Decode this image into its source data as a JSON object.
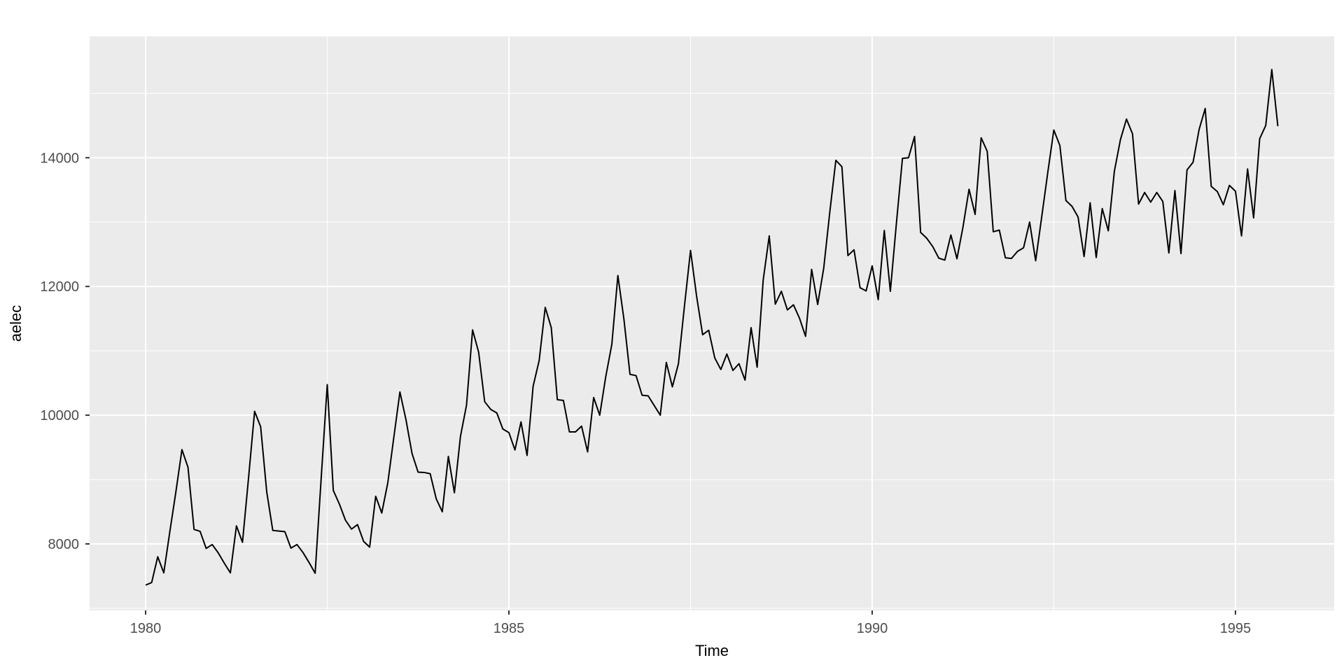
{
  "figure": {
    "xlabel": "Time",
    "ylabel": "aelec"
  },
  "style": {
    "outer_bg": "#ffffff",
    "panel_bg": "#ebebeb",
    "grid_color": "#ffffff",
    "line_color": "#000000",
    "axis_text_color": "#4d4d4d",
    "axis_title_color": "#000000",
    "tick_mark_color": "#333333"
  },
  "chart_data": {
    "type": "line",
    "title": "",
    "xlabel": "Time",
    "ylabel": "aelec",
    "legend": false,
    "grid": true,
    "series": [
      {
        "name": "aelec",
        "start_year": 1980,
        "start_month": 1,
        "frequency": 12,
        "values": [
          7360,
          7400,
          7800,
          7550,
          8190,
          8810,
          9465,
          9190,
          8225,
          8195,
          7930,
          7990,
          7860,
          7700,
          7550,
          8280,
          8025,
          9025,
          10060,
          9820,
          8810,
          8210,
          8200,
          8190,
          7935,
          7990,
          7865,
          7710,
          7545,
          9025,
          10475,
          8830,
          8620,
          8370,
          8230,
          8300,
          8040,
          7950,
          8740,
          8480,
          8950,
          9660,
          10360,
          9930,
          9405,
          9115,
          9110,
          9090,
          8700,
          8500,
          9360,
          8795,
          9670,
          10155,
          11325,
          10980,
          10210,
          10090,
          10035,
          9785,
          9730,
          9460,
          9895,
          9375,
          10450,
          10850,
          11675,
          11360,
          10240,
          10230,
          9740,
          9740,
          9830,
          9430,
          10275,
          10000,
          10600,
          11100,
          12170,
          11490,
          10635,
          10615,
          10310,
          10300,
          10150,
          10000,
          10820,
          10440,
          10800,
          11700,
          12560,
          11850,
          11250,
          11320,
          10890,
          10710,
          10950,
          10695,
          10800,
          10545,
          11360,
          10745,
          12100,
          12785,
          11725,
          11925,
          11635,
          11715,
          11505,
          11225,
          12265,
          11720,
          12285,
          13155,
          13960,
          13860,
          12480,
          12570,
          11980,
          11930,
          12320,
          11795,
          12870,
          11925,
          12980,
          13990,
          14000,
          14330,
          12840,
          12750,
          12620,
          12440,
          12410,
          12800,
          12430,
          12925,
          13510,
          13120,
          14310,
          14100,
          12850,
          12875,
          12445,
          12435,
          12545,
          12600,
          13000,
          12400,
          13080,
          13770,
          14430,
          14190,
          13335,
          13245,
          13080,
          12465,
          13300,
          12450,
          13210,
          12865,
          13790,
          14280,
          14600,
          14370,
          13280,
          13460,
          13310,
          13460,
          13320,
          12520,
          13490,
          12510,
          13810,
          13930,
          14440,
          14765,
          13555,
          13475,
          13270,
          13570,
          13480,
          12785,
          13825,
          13065,
          14295,
          14500,
          15370,
          14490
        ]
      }
    ],
    "x_ticks": [
      1980,
      1985,
      1990,
      1995
    ],
    "x_minor_ticks": [
      1982.5,
      1987.5,
      1992.5
    ],
    "y_ticks": [
      8000,
      10000,
      12000,
      14000
    ],
    "y_minor_ticks": [
      7000,
      9000,
      11000,
      13000,
      15000
    ],
    "x_range": [
      1979.229,
      1996.359
    ],
    "y_range": [
      6967,
      15885
    ]
  }
}
